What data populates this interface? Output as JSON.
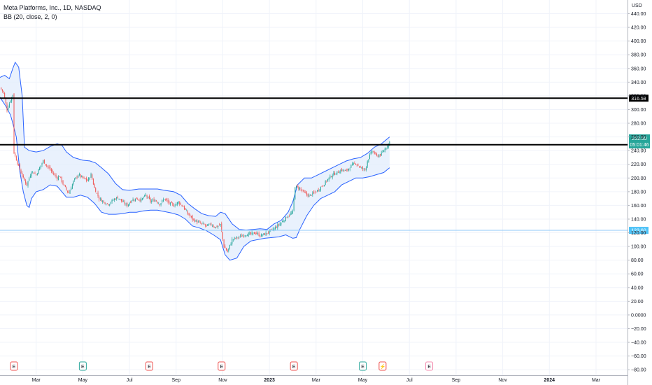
{
  "header": {
    "title": "Meta Platforms, Inc., 1D, NASDAQ",
    "indicator": "BB (20, close, 2, 0)"
  },
  "colors": {
    "up": "#26a69a",
    "down": "#ef5350",
    "band": "#2962ff",
    "band_fill": "#e3eefc",
    "grid": "#f0f3fa",
    "price_tag_green": "#26a69a",
    "hline_light": "#90caf9"
  },
  "chart_data": {
    "type": "candlestick",
    "currency": "USD",
    "y_ticks": [
      440,
      420,
      400,
      380,
      360,
      340,
      320,
      300,
      280,
      260,
      240,
      220,
      200,
      180,
      160,
      140,
      120,
      100,
      80,
      60,
      40,
      20,
      0,
      -20,
      -40,
      -60,
      -80
    ],
    "y_tick_labels": [
      "440.00",
      "420.00",
      "400.00",
      "380.00",
      "360.00",
      "340.00",
      "320.00",
      "300.00",
      "280.00",
      "260.00",
      "240.00",
      "220.00",
      "200.00",
      "180.00",
      "160.00",
      "140.00",
      "120.00",
      "100.00",
      "80.00",
      "60.00",
      "40.00",
      "20.00",
      "0.0000",
      "−20.00",
      "−40.00",
      "−60.00",
      "−80.00"
    ],
    "ylim": [
      -88,
      460
    ],
    "x_labels": [
      {
        "label": "Mar",
        "month": 2
      },
      {
        "label": "May",
        "month": 4
      },
      {
        "label": "Jul",
        "month": 6
      },
      {
        "label": "Sep",
        "month": 8
      },
      {
        "label": "Nov",
        "month": 10
      },
      {
        "label": "2023",
        "month": 12
      },
      {
        "label": "Mar",
        "month": 14
      },
      {
        "label": "May",
        "month": 16
      },
      {
        "label": "Jul",
        "month": 18
      },
      {
        "label": "Sep",
        "month": 20
      },
      {
        "label": "Nov",
        "month": 22
      },
      {
        "label": "2024",
        "month": 24
      },
      {
        "label": "Mar",
        "month": 26
      }
    ],
    "xlim": [
      0.45,
      27.35
    ],
    "horizontal_lines": [
      {
        "value": 316.58,
        "label": "316.58",
        "style": "black"
      },
      {
        "value": 248.57,
        "label": "248.57",
        "style": "black"
      },
      {
        "value": 123.6,
        "label": "123.60",
        "style": "light"
      }
    ],
    "last_price": {
      "value": 252.5,
      "label": "252.50",
      "countdown": "05:01:46"
    },
    "close_path": [
      [
        0.45,
        332
      ],
      [
        0.6,
        325
      ],
      [
        0.75,
        300
      ],
      [
        0.88,
        312
      ],
      [
        1.0,
        322
      ],
      [
        1.02,
        240
      ],
      [
        1.2,
        222
      ],
      [
        1.4,
        203
      ],
      [
        1.6,
        190
      ],
      [
        1.8,
        210
      ],
      [
        2.0,
        205
      ],
      [
        2.3,
        225
      ],
      [
        2.6,
        212
      ],
      [
        2.9,
        200
      ],
      [
        3.0,
        203
      ],
      [
        3.2,
        188
      ],
      [
        3.4,
        178
      ],
      [
        3.6,
        195
      ],
      [
        3.8,
        205
      ],
      [
        4.0,
        200
      ],
      [
        4.2,
        196
      ],
      [
        4.35,
        205
      ],
      [
        4.5,
        185
      ],
      [
        4.7,
        170
      ],
      [
        4.9,
        165
      ],
      [
        5.1,
        162
      ],
      [
        5.3,
        168
      ],
      [
        5.5,
        172
      ],
      [
        5.7,
        165
      ],
      [
        5.9,
        160
      ],
      [
        6.1,
        168
      ],
      [
        6.3,
        170
      ],
      [
        6.5,
        168
      ],
      [
        6.7,
        175
      ],
      [
        6.9,
        166
      ],
      [
        7.1,
        168
      ],
      [
        7.3,
        162
      ],
      [
        7.5,
        170
      ],
      [
        7.7,
        163
      ],
      [
        7.9,
        160
      ],
      [
        8.1,
        165
      ],
      [
        8.3,
        158
      ],
      [
        8.5,
        148
      ],
      [
        8.7,
        140
      ],
      [
        8.9,
        136
      ],
      [
        9.1,
        133
      ],
      [
        9.3,
        130
      ],
      [
        9.5,
        132
      ],
      [
        9.7,
        128
      ],
      [
        9.9,
        132
      ],
      [
        10.05,
        100
      ],
      [
        10.2,
        92
      ],
      [
        10.4,
        110
      ],
      [
        10.6,
        113
      ],
      [
        10.8,
        115
      ],
      [
        11.0,
        118
      ],
      [
        11.2,
        118
      ],
      [
        11.4,
        120
      ],
      [
        11.6,
        116
      ],
      [
        11.8,
        118
      ],
      [
        12.0,
        122
      ],
      [
        12.2,
        126
      ],
      [
        12.4,
        132
      ],
      [
        12.6,
        138
      ],
      [
        12.8,
        145
      ],
      [
        13.0,
        150
      ],
      [
        13.1,
        188
      ],
      [
        13.3,
        185
      ],
      [
        13.5,
        178
      ],
      [
        13.7,
        174
      ],
      [
        13.9,
        178
      ],
      [
        14.1,
        183
      ],
      [
        14.3,
        190
      ],
      [
        14.5,
        198
      ],
      [
        14.7,
        205
      ],
      [
        14.9,
        208
      ],
      [
        15.1,
        212
      ],
      [
        15.3,
        210
      ],
      [
        15.5,
        218
      ],
      [
        15.7,
        222
      ],
      [
        15.9,
        215
      ],
      [
        16.1,
        212
      ],
      [
        16.2,
        225
      ],
      [
        16.4,
        240
      ],
      [
        16.6,
        232
      ],
      [
        16.8,
        235
      ],
      [
        17.0,
        245
      ],
      [
        17.15,
        252.5
      ]
    ],
    "bands": {
      "upper": [
        [
          0.45,
          347
        ],
        [
          0.65,
          350
        ],
        [
          0.85,
          345
        ],
        [
          1.0,
          360
        ],
        [
          1.1,
          369
        ],
        [
          1.25,
          362
        ],
        [
          1.4,
          320
        ],
        [
          1.5,
          245
        ],
        [
          1.7,
          240
        ],
        [
          2.0,
          238
        ],
        [
          2.3,
          240
        ],
        [
          2.6,
          246
        ],
        [
          2.9,
          250
        ],
        [
          3.1,
          248
        ],
        [
          3.3,
          238
        ],
        [
          3.6,
          230
        ],
        [
          4.0,
          226
        ],
        [
          4.3,
          225
        ],
        [
          4.55,
          222
        ],
        [
          4.8,
          215
        ],
        [
          5.1,
          206
        ],
        [
          5.4,
          192
        ],
        [
          5.7,
          183
        ],
        [
          6.0,
          182
        ],
        [
          6.4,
          184
        ],
        [
          6.8,
          184
        ],
        [
          7.2,
          184
        ],
        [
          7.5,
          182
        ],
        [
          7.9,
          180
        ],
        [
          8.2,
          175
        ],
        [
          8.5,
          163
        ],
        [
          8.8,
          155
        ],
        [
          9.1,
          148
        ],
        [
          9.4,
          145
        ],
        [
          9.7,
          144
        ],
        [
          9.9,
          150
        ],
        [
          10.1,
          148
        ],
        [
          10.4,
          133
        ],
        [
          10.7,
          125
        ],
        [
          11.0,
          124
        ],
        [
          11.3,
          125
        ],
        [
          11.6,
          126
        ],
        [
          11.9,
          125
        ],
        [
          12.2,
          133
        ],
        [
          12.5,
          138
        ],
        [
          12.8,
          150
        ],
        [
          13.0,
          165
        ],
        [
          13.2,
          190
        ],
        [
          13.5,
          200
        ],
        [
          13.8,
          200
        ],
        [
          14.1,
          205
        ],
        [
          14.4,
          210
        ],
        [
          14.7,
          215
        ],
        [
          15.0,
          220
        ],
        [
          15.3,
          225
        ],
        [
          15.6,
          228
        ],
        [
          15.9,
          230
        ],
        [
          16.2,
          236
        ],
        [
          16.5,
          245
        ],
        [
          16.8,
          250
        ],
        [
          17.15,
          260
        ]
      ],
      "lower": [
        [
          0.45,
          318
        ],
        [
          0.7,
          305
        ],
        [
          0.9,
          292
        ],
        [
          1.0,
          280
        ],
        [
          1.15,
          260
        ],
        [
          1.3,
          210
        ],
        [
          1.45,
          180
        ],
        [
          1.6,
          160
        ],
        [
          1.7,
          157
        ],
        [
          1.8,
          170
        ],
        [
          2.0,
          180
        ],
        [
          2.3,
          183
        ],
        [
          2.6,
          190
        ],
        [
          2.9,
          188
        ],
        [
          3.1,
          180
        ],
        [
          3.3,
          172
        ],
        [
          3.6,
          172
        ],
        [
          3.9,
          175
        ],
        [
          4.2,
          172
        ],
        [
          4.5,
          163
        ],
        [
          4.8,
          150
        ],
        [
          5.1,
          147
        ],
        [
          5.4,
          147
        ],
        [
          5.7,
          148
        ],
        [
          6.0,
          150
        ],
        [
          6.3,
          150
        ],
        [
          6.6,
          152
        ],
        [
          6.9,
          153
        ],
        [
          7.2,
          153
        ],
        [
          7.5,
          151
        ],
        [
          7.8,
          149
        ],
        [
          8.1,
          146
        ],
        [
          8.4,
          140
        ],
        [
          8.7,
          130
        ],
        [
          9.0,
          127
        ],
        [
          9.3,
          123
        ],
        [
          9.6,
          117
        ],
        [
          9.9,
          110
        ],
        [
          10.1,
          88
        ],
        [
          10.3,
          80
        ],
        [
          10.6,
          83
        ],
        [
          10.9,
          100
        ],
        [
          11.2,
          108
        ],
        [
          11.5,
          110
        ],
        [
          11.8,
          112
        ],
        [
          12.1,
          113
        ],
        [
          12.4,
          114
        ],
        [
          12.7,
          117
        ],
        [
          13.0,
          112
        ],
        [
          13.15,
          113
        ],
        [
          13.3,
          125
        ],
        [
          13.6,
          145
        ],
        [
          13.9,
          160
        ],
        [
          14.2,
          170
        ],
        [
          14.5,
          175
        ],
        [
          14.8,
          180
        ],
        [
          15.1,
          190
        ],
        [
          15.4,
          195
        ],
        [
          15.7,
          200
        ],
        [
          16.0,
          200
        ],
        [
          16.3,
          202
        ],
        [
          16.6,
          205
        ],
        [
          16.9,
          208
        ],
        [
          17.15,
          215
        ]
      ]
    },
    "events": [
      {
        "type": "earnings",
        "month": 1.05,
        "label": "E",
        "color": "#ef5350",
        "filled": false
      },
      {
        "type": "earnings",
        "month": 4.0,
        "label": "E",
        "color": "#26a69a",
        "filled": false
      },
      {
        "type": "earnings",
        "month": 6.85,
        "label": "E",
        "color": "#ef5350",
        "filled": false
      },
      {
        "type": "earnings",
        "month": 9.95,
        "label": "E",
        "color": "#ef5350",
        "filled": false
      },
      {
        "type": "earnings",
        "month": 13.05,
        "label": "E",
        "color": "#ef5350",
        "filled": false
      },
      {
        "type": "earnings",
        "month": 16.0,
        "label": "E",
        "color": "#26a69a",
        "filled": false
      },
      {
        "type": "split",
        "month": 16.85,
        "label": "⚡",
        "color": "#ef5350",
        "filled": false
      },
      {
        "type": "earnings",
        "month": 18.85,
        "label": "E",
        "color": "#f48fb1",
        "filled": false
      }
    ]
  }
}
